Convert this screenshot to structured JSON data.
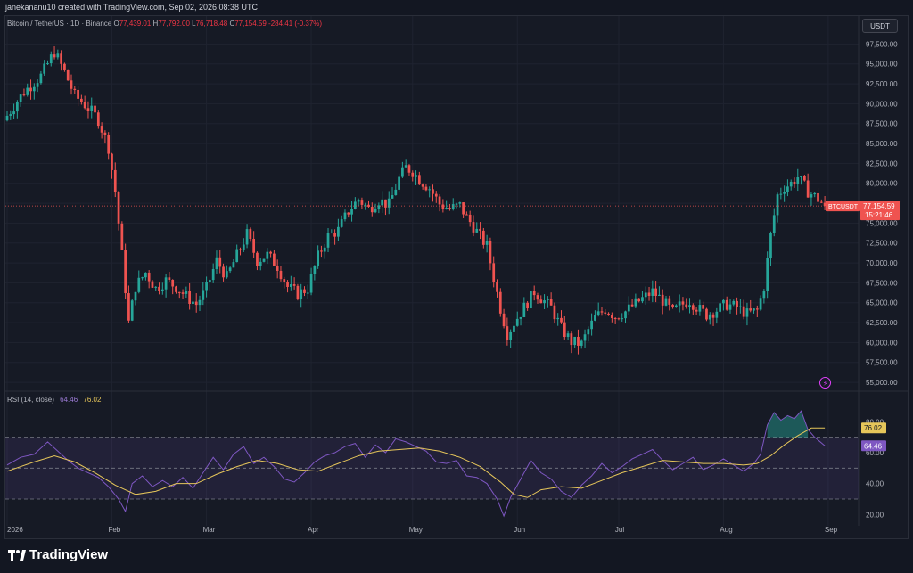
{
  "header": {
    "attribution": "janekananu10 created with TradingView.com, Sep 02, 2026 08:38 UTC"
  },
  "legend": {
    "symbol": "Bitcoin / TetherUS · 1D · Binance",
    "o_label": "O",
    "o_value": "77,439.01",
    "h_label": "H",
    "h_value": "77,792.00",
    "l_label": "L",
    "l_value": "76,718.48",
    "c_label": "C",
    "c_value": "77,154.59",
    "change": "-284.41 (-0.37%)"
  },
  "currency_button": "USDT",
  "price_tag": {
    "symbol": "BTCUSDT",
    "price": "77,154.59",
    "countdown": "15:21:46"
  },
  "rsi": {
    "label": "RSI (14, close)",
    "value": "64.46",
    "ma_value": "76.02"
  },
  "footer": {
    "brand": "TradingView"
  },
  "colors": {
    "up": "#26a69a",
    "down": "#ef5350",
    "rsi": "#7e57c2",
    "rsi_ma": "#e6c65a",
    "bg": "#161a25"
  },
  "chart_data": [
    {
      "type": "candlestick",
      "title": "Bitcoin / TetherUS · 1D · Binance",
      "xlabel": "",
      "ylabel": "",
      "ylim": [
        54000,
        99000
      ],
      "y_ticks": [
        "97,500.00",
        "95,000.00",
        "92,500.00",
        "90,000.00",
        "87,500.00",
        "85,000.00",
        "82,500.00",
        "80,000.00",
        "77,500.00",
        "75,000.00",
        "72,500.00",
        "70,000.00",
        "67,500.00",
        "65,000.00",
        "62,500.00",
        "60,000.00",
        "57,500.00",
        "55,000.00"
      ],
      "x_tick_labels": [
        "2026",
        "Feb",
        "Mar",
        "Apr",
        "May",
        "Jun",
        "Jul",
        "Aug",
        "Sep"
      ],
      "x_tick_days": [
        0,
        31,
        59,
        90,
        120,
        151,
        181,
        212,
        243
      ],
      "last_price": 77154.59,
      "close_path": [
        [
          0,
          88500
        ],
        [
          5,
          91500
        ],
        [
          10,
          93500
        ],
        [
          14,
          96500
        ],
        [
          17,
          94000
        ],
        [
          20,
          91000
        ],
        [
          24,
          89500
        ],
        [
          27,
          88000
        ],
        [
          30,
          84500
        ],
        [
          32,
          79000
        ],
        [
          34,
          71000
        ],
        [
          36,
          62500
        ],
        [
          38,
          67000
        ],
        [
          41,
          68800
        ],
        [
          44,
          66800
        ],
        [
          47,
          67800
        ],
        [
          50,
          67000
        ],
        [
          53,
          65800
        ],
        [
          56,
          64800
        ],
        [
          59,
          66800
        ],
        [
          62,
          70300
        ],
        [
          65,
          68200
        ],
        [
          68,
          71000
        ],
        [
          71,
          73600
        ],
        [
          74,
          70300
        ],
        [
          77,
          71000
        ],
        [
          80,
          69600
        ],
        [
          83,
          67000
        ],
        [
          86,
          66100
        ],
        [
          89,
          66800
        ],
        [
          92,
          70800
        ],
        [
          95,
          73400
        ],
        [
          98,
          74100
        ],
        [
          101,
          76500
        ],
        [
          104,
          78000
        ],
        [
          107,
          76800
        ],
        [
          110,
          77900
        ],
        [
          113,
          77300
        ],
        [
          116,
          80600
        ],
        [
          118,
          82000
        ],
        [
          120,
          81500
        ],
        [
          122,
          80500
        ],
        [
          125,
          79400
        ],
        [
          128,
          77400
        ],
        [
          131,
          76800
        ],
        [
          134,
          77200
        ],
        [
          136,
          75700
        ],
        [
          138,
          74600
        ],
        [
          140,
          73300
        ],
        [
          142,
          72100
        ],
        [
          144,
          68100
        ],
        [
          146,
          64300
        ],
        [
          148,
          61100
        ],
        [
          150,
          62500
        ],
        [
          153,
          64400
        ],
        [
          156,
          66400
        ],
        [
          159,
          65200
        ],
        [
          161,
          64400
        ],
        [
          164,
          61800
        ],
        [
          167,
          60100
        ],
        [
          170,
          59800
        ],
        [
          172,
          61600
        ],
        [
          174,
          63100
        ],
        [
          177,
          64200
        ],
        [
          180,
          63300
        ],
        [
          183,
          63900
        ],
        [
          186,
          64900
        ],
        [
          189,
          65800
        ],
        [
          191,
          66400
        ],
        [
          194,
          65300
        ],
        [
          197,
          63800
        ],
        [
          199,
          64600
        ],
        [
          202,
          65300
        ],
        [
          205,
          64100
        ],
        [
          207,
          63500
        ],
        [
          210,
          64100
        ],
        [
          213,
          64800
        ],
        [
          216,
          64400
        ],
        [
          219,
          63600
        ],
        [
          222,
          64000
        ],
        [
          224,
          67000
        ],
        [
          226,
          73500
        ],
        [
          228,
          78500
        ],
        [
          230,
          79500
        ],
        [
          232,
          80000
        ],
        [
          234,
          80800
        ],
        [
          237,
          79000
        ],
        [
          240,
          78000
        ],
        [
          242,
          77155
        ]
      ]
    },
    {
      "type": "line",
      "title": "RSI (14, close)",
      "ylim": [
        15,
        90
      ],
      "y_ticks": [
        "80.00",
        "60.00",
        "40.00",
        "20.00"
      ],
      "bands": [
        30,
        50,
        70
      ],
      "last_value": 64.46,
      "last_ma": 76.02,
      "series": [
        {
          "name": "RSI",
          "values": [
            [
              0,
              52
            ],
            [
              4,
              57
            ],
            [
              8,
              59
            ],
            [
              12,
              67
            ],
            [
              15,
              61
            ],
            [
              18,
              55
            ],
            [
              21,
              50
            ],
            [
              24,
              47
            ],
            [
              27,
              44
            ],
            [
              30,
              38
            ],
            [
              33,
              30
            ],
            [
              35,
              22
            ],
            [
              37,
              40
            ],
            [
              40,
              45
            ],
            [
              43,
              38
            ],
            [
              46,
              42
            ],
            [
              49,
              38
            ],
            [
              52,
              44
            ],
            [
              55,
              37
            ],
            [
              58,
              47
            ],
            [
              61,
              57
            ],
            [
              64,
              49
            ],
            [
              67,
              59
            ],
            [
              70,
              64
            ],
            [
              73,
              53
            ],
            [
              76,
              57
            ],
            [
              79,
              51
            ],
            [
              82,
              43
            ],
            [
              85,
              41
            ],
            [
              88,
              47
            ],
            [
              91,
              54
            ],
            [
              94,
              58
            ],
            [
              97,
              60
            ],
            [
              100,
              64
            ],
            [
              103,
              66
            ],
            [
              106,
              57
            ],
            [
              109,
              65
            ],
            [
              112,
              60
            ],
            [
              115,
              69
            ],
            [
              118,
              67
            ],
            [
              121,
              64
            ],
            [
              124,
              61
            ],
            [
              127,
              54
            ],
            [
              130,
              53
            ],
            [
              133,
              55
            ],
            [
              136,
              45
            ],
            [
              139,
              44
            ],
            [
              142,
              40
            ],
            [
              145,
              30
            ],
            [
              147,
              19
            ],
            [
              149,
              31
            ],
            [
              152,
              43
            ],
            [
              155,
              55
            ],
            [
              158,
              47
            ],
            [
              161,
              43
            ],
            [
              164,
              35
            ],
            [
              167,
              31
            ],
            [
              170,
              39
            ],
            [
              173,
              45
            ],
            [
              176,
              53
            ],
            [
              179,
              47
            ],
            [
              182,
              51
            ],
            [
              185,
              56
            ],
            [
              188,
              59
            ],
            [
              191,
              62
            ],
            [
              194,
              55
            ],
            [
              197,
              49
            ],
            [
              200,
              53
            ],
            [
              203,
              57
            ],
            [
              206,
              49
            ],
            [
              209,
              52
            ],
            [
              212,
              56
            ],
            [
              215,
              52
            ],
            [
              218,
              48
            ],
            [
              221,
              53
            ],
            [
              223,
              59
            ],
            [
              225,
              78
            ],
            [
              227,
              86
            ],
            [
              229,
              81
            ],
            [
              231,
              84
            ],
            [
              233,
              82
            ],
            [
              235,
              87
            ],
            [
              237,
              75
            ],
            [
              239,
              70
            ],
            [
              242,
              64.46
            ]
          ]
        },
        {
          "name": "RSI-based MA",
          "values": [
            [
              0,
              48
            ],
            [
              8,
              54
            ],
            [
              14,
              58
            ],
            [
              20,
              54
            ],
            [
              26,
              47
            ],
            [
              32,
              39
            ],
            [
              38,
              33
            ],
            [
              44,
              35
            ],
            [
              50,
              40
            ],
            [
              56,
              40
            ],
            [
              62,
              46
            ],
            [
              68,
              51
            ],
            [
              74,
              55
            ],
            [
              80,
              53
            ],
            [
              86,
              49
            ],
            [
              92,
              48
            ],
            [
              98,
              53
            ],
            [
              104,
              58
            ],
            [
              110,
              61
            ],
            [
              116,
              62
            ],
            [
              122,
              63
            ],
            [
              128,
              61
            ],
            [
              134,
              57
            ],
            [
              140,
              51
            ],
            [
              146,
              41
            ],
            [
              150,
              33
            ],
            [
              154,
              31
            ],
            [
              158,
              36
            ],
            [
              164,
              38
            ],
            [
              170,
              37
            ],
            [
              176,
              42
            ],
            [
              182,
              47
            ],
            [
              188,
              51
            ],
            [
              194,
              55
            ],
            [
              200,
              54
            ],
            [
              206,
              53
            ],
            [
              212,
              53
            ],
            [
              218,
              52
            ],
            [
              222,
              53
            ],
            [
              226,
              58
            ],
            [
              230,
              65
            ],
            [
              234,
              71
            ],
            [
              238,
              76
            ],
            [
              242,
              76.02
            ]
          ]
        }
      ]
    }
  ]
}
